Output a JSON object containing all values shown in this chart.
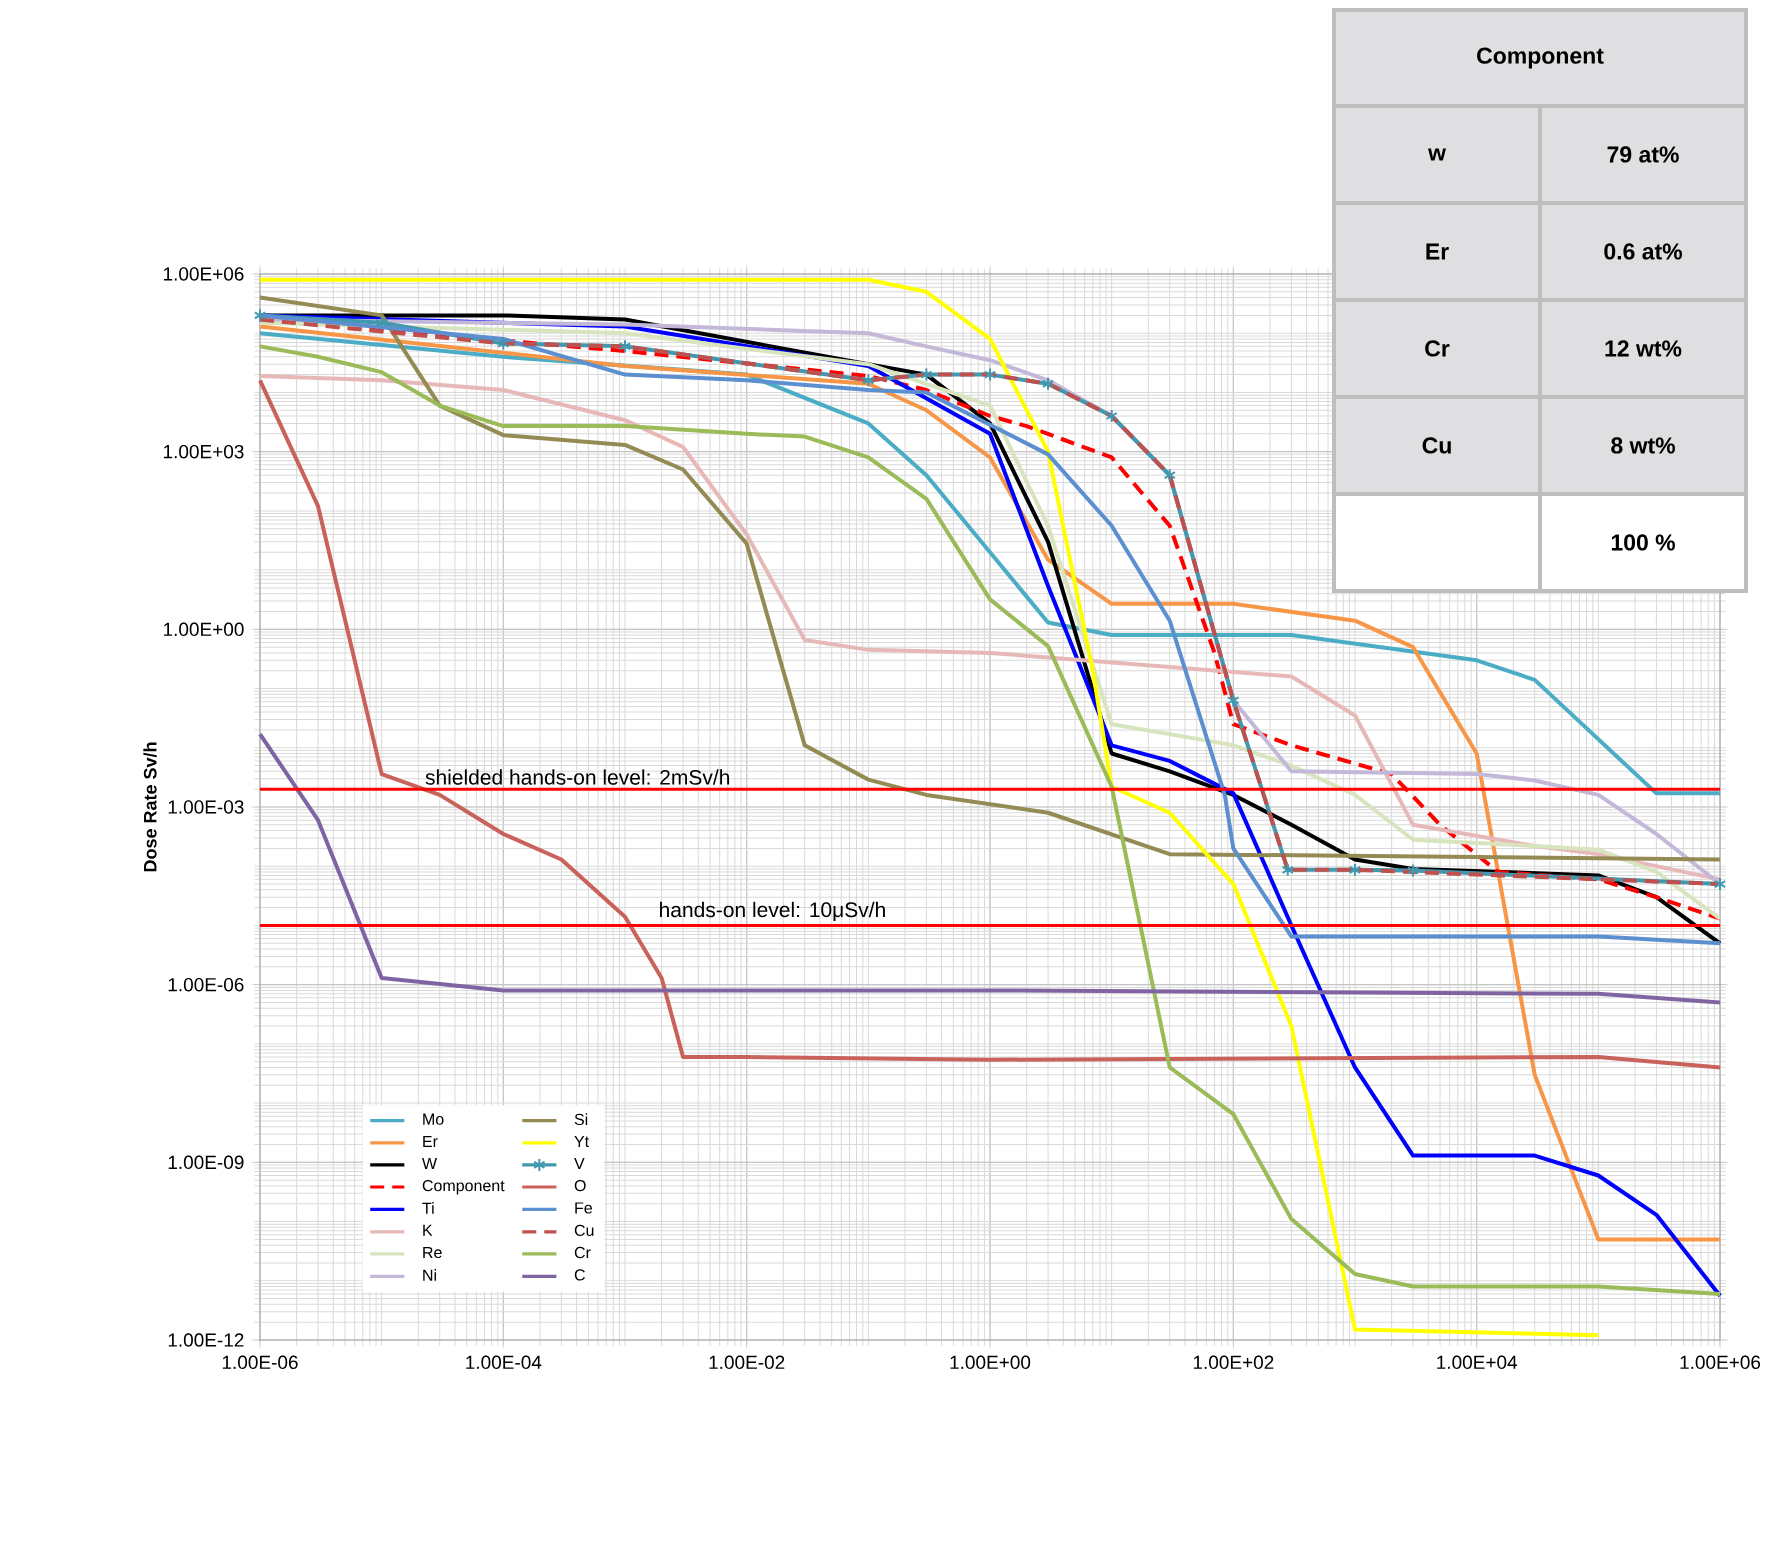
{
  "chart_data": {
    "type": "line",
    "ylabel": "Dose Rate  Sv/h",
    "log": "xy",
    "grid": true,
    "legend": "bottom left",
    "xlim": [
      1e-06,
      1000000.0
    ],
    "ylim": [
      1e-12,
      1000000.0
    ],
    "xticks": [
      {
        "value": 1e-06,
        "label": "1.00E-06"
      },
      {
        "value": 0.0001,
        "label": "1.00E-04"
      },
      {
        "value": 0.01,
        "label": "1.00E-02"
      },
      {
        "value": 1,
        "label": "1.00E+00"
      },
      {
        "value": 100,
        "label": "1.00E+02"
      },
      {
        "value": 10000.0,
        "label": "1.00E+04"
      },
      {
        "value": 1000000.0,
        "label": "1.00E+06"
      }
    ],
    "yticks": [
      {
        "value": 1e-12,
        "label": "1.00E-12"
      },
      {
        "value": 1e-09,
        "label": "1.00E-09"
      },
      {
        "value": 1e-06,
        "label": "1.00E-06"
      },
      {
        "value": 0.001,
        "label": "1.00E-03"
      },
      {
        "value": 1,
        "label": "1.00E+00"
      },
      {
        "value": 1000.0,
        "label": "1.00E+03"
      },
      {
        "value": 1000000.0,
        "label": "1.00E+06"
      }
    ],
    "ref_lines": [
      {
        "axis": "y",
        "value": 0.002,
        "label": "shielded hands-on level: 2mSv/h",
        "color": "#ff0000"
      },
      {
        "axis": "y",
        "value": 1e-05,
        "label": "hands-on level: 10μSv/h",
        "color": "#ff0000"
      }
    ],
    "annotations": [
      "Component",
      "w",
      "79 at%",
      "Er",
      "0.6 at%",
      "Cr",
      "12 wt%",
      "Cu",
      "8 wt%",
      "100 %"
    ],
    "series": [
      {
        "name": "Mo",
        "color": "#4bacc6",
        "x": [
          1e-06,
          0.0001,
          0.01,
          0.1,
          0.3,
          1,
          3,
          10,
          300,
          10000.0,
          30000.0,
          300000.0,
          1000000.0
        ],
        "values": [
          100000.0,
          40000.0,
          20000.0,
          3000.0,
          400,
          20,
          1.3,
          0.8,
          0.8,
          0.3,
          0.14,
          0.0017,
          0.0017
        ]
      },
      {
        "name": "Er",
        "color": "#f79646",
        "x": [
          1e-06,
          0.001,
          0.1,
          0.3,
          1,
          3,
          10,
          100,
          1000,
          3000,
          10000.0,
          30000.0,
          100000.0,
          1000000.0
        ],
        "values": [
          130000.0,
          28000.0,
          14000.0,
          5000.0,
          800,
          15,
          2.7,
          2.7,
          1.4,
          0.5,
          0.008,
          3e-08,
          5e-11,
          5e-11
        ]
      },
      {
        "name": "W",
        "color": "#000000",
        "x": [
          1e-06,
          0.0001,
          0.001,
          0.1,
          0.3,
          1,
          3,
          10,
          30,
          100,
          300,
          1000,
          3000,
          100000.0,
          300000.0,
          1000000.0
        ],
        "values": [
          200000.0,
          200000.0,
          170000.0,
          30000.0,
          20000.0,
          3000.0,
          30,
          0.008,
          0.004,
          0.0016,
          0.0005,
          0.00013,
          9e-05,
          7e-05,
          3e-05,
          5e-06
        ]
      },
      {
        "name": "Component",
        "color": "#ff0000",
        "line_style": "dashed",
        "x": [
          1e-06,
          0.001,
          0.1,
          0.3,
          1,
          2,
          10,
          30,
          70,
          100,
          300,
          2000,
          5000,
          15000.0,
          100000.0,
          300000.0,
          1000000.0
        ],
        "values": [
          170000.0,
          50000.0,
          19000.0,
          11000.0,
          4000.0,
          2700.0,
          800,
          56,
          0.4,
          0.025,
          0.011,
          0.0036,
          0.0005,
          8e-05,
          6e-05,
          3e-05,
          1.3e-05
        ]
      },
      {
        "name": "Ti",
        "color": "#0000ff",
        "x": [
          1e-06,
          0.001,
          0.1,
          1,
          3,
          10,
          30,
          100,
          300,
          1000,
          3000,
          30000.0,
          100000.0,
          300000.0,
          1000000.0
        ],
        "values": [
          200000.0,
          130000.0,
          28000.0,
          2000.0,
          5.4,
          0.011,
          0.006,
          0.0017,
          1e-05,
          4e-08,
          1.3e-09,
          1.3e-09,
          6e-10,
          1.3e-10,
          5.6e-12
        ]
      },
      {
        "name": "K",
        "color": "#e6b9b8",
        "x": [
          1e-06,
          1e-05,
          0.0001,
          0.001,
          0.003,
          0.01,
          0.03,
          0.1,
          1,
          300,
          1000,
          3000,
          30000.0,
          100000.0,
          1000000.0
        ],
        "values": [
          19000.0,
          16000.0,
          11000.0,
          3400.0,
          1200.0,
          40,
          0.66,
          0.45,
          0.4,
          0.16,
          0.035,
          0.0005,
          0.00022,
          0.00016,
          6e-05
        ]
      },
      {
        "name": "Re",
        "color": "#d7e4bd",
        "x": [
          1e-06,
          0.001,
          0.1,
          1,
          3,
          10,
          30,
          100,
          300,
          1000,
          3000,
          30000.0,
          100000.0,
          300000.0,
          1000000.0
        ],
        "values": [
          150000.0,
          100000.0,
          30000.0,
          6000.0,
          56,
          0.025,
          0.017,
          0.011,
          0.005,
          0.0016,
          0.00028,
          0.00022,
          0.00019,
          8e-05,
          1.3e-05
        ]
      },
      {
        "name": "Ni",
        "color": "#c3b8d8",
        "x": [
          1e-06,
          0.001,
          0.1,
          0.3,
          1,
          3,
          10,
          30,
          100,
          300,
          10000.0,
          30000.0,
          100000.0,
          300000.0,
          1000000.0
        ],
        "values": [
          170000.0,
          140000.0,
          100000.0,
          60000.0,
          35000.0,
          16000.0,
          4000.0,
          400,
          0.063,
          0.004,
          0.0036,
          0.0028,
          0.0016,
          0.00035,
          5e-05
        ]
      },
      {
        "name": "Si",
        "color": "#948a54",
        "x": [
          1e-06,
          1e-05,
          3e-05,
          0.0001,
          0.001,
          0.003,
          0.01,
          0.03,
          0.1,
          0.3,
          3,
          30,
          1000000.0
        ],
        "values": [
          400000.0,
          200000.0,
          6000.0,
          1900.0,
          1300.0,
          500,
          28,
          0.011,
          0.0029,
          0.0016,
          0.0008,
          0.00016,
          0.00013
        ]
      },
      {
        "name": "Yt",
        "color": "#ffff00",
        "x": [
          1e-06,
          0.1,
          0.3,
          1,
          3,
          7,
          10,
          30,
          100,
          300,
          1000,
          100000.0
        ],
        "values": [
          800000.0,
          800000.0,
          500000.0,
          80000.0,
          1000.0,
          0.2,
          0.0022,
          0.0008,
          5e-05,
          2e-07,
          1.5e-12,
          1.2e-12
        ]
      },
      {
        "name": "V",
        "color": "#4198af",
        "marker": "cross",
        "x": [
          1e-06,
          1e-05,
          0.0001,
          0.001,
          0.1,
          0.3,
          1,
          3,
          10,
          30,
          100,
          280,
          1000,
          3000,
          1000000.0
        ],
        "values": [
          200000.0,
          150000.0,
          67000.0,
          60000.0,
          16000.0,
          20000.0,
          20000.0,
          14000.0,
          4000.0,
          400,
          0.063,
          8.7e-05,
          8.7e-05,
          8.5e-05,
          5e-05
        ]
      },
      {
        "name": "O",
        "color": "#c9625a",
        "x": [
          1e-06,
          3e-06,
          1e-05,
          3e-05,
          0.0001,
          0.0003,
          0.001,
          0.002,
          0.003,
          0.01,
          1,
          100000.0,
          1000000.0
        ],
        "values": [
          16000.0,
          120,
          0.0036,
          0.0016,
          0.00035,
          0.00013,
          1.4e-05,
          1.3e-06,
          6e-08,
          6e-08,
          5.4e-08,
          6e-08,
          4e-08
        ]
      },
      {
        "name": "Fe",
        "color": "#5b8fd0",
        "x": [
          1e-06,
          0.0001,
          0.001,
          0.01,
          0.1,
          0.3,
          3,
          10,
          30,
          85,
          100,
          300,
          100000.0,
          1000000.0
        ],
        "values": [
          200000.0,
          80000.0,
          20000.0,
          16000.0,
          11000.0,
          10000.0,
          900,
          56,
          1.4,
          0.0016,
          0.0002,
          6.5e-06,
          6.5e-06,
          5e-06
        ]
      },
      {
        "name": "Cu",
        "color": "#c0504d",
        "line_style": "dashed",
        "x": [
          1e-06,
          0.0001,
          0.001,
          0.1,
          0.3,
          1,
          3,
          10,
          30,
          100,
          280,
          1000,
          1000000.0
        ],
        "values": [
          170000.0,
          67000.0,
          60000.0,
          16000.0,
          20000.0,
          20000.0,
          14000.0,
          4000.0,
          400,
          0.063,
          8.7e-05,
          8.7e-05,
          5e-05
        ]
      },
      {
        "name": "Cr",
        "color": "#9bbb59",
        "x": [
          1e-06,
          3e-06,
          1e-05,
          3e-05,
          0.0001,
          0.001,
          0.01,
          0.03,
          0.1,
          0.3,
          1,
          3,
          10,
          30,
          100,
          300,
          1000,
          3000,
          100000.0,
          1000000.0
        ],
        "values": [
          60000.0,
          40000.0,
          22000.0,
          6000.0,
          2700.0,
          2700.0,
          2000.0,
          1800.0,
          800,
          160,
          3.2,
          0.52,
          0.0022,
          4e-08,
          6.5e-09,
          1.1e-10,
          1.3e-11,
          8e-12,
          8e-12,
          6e-12
        ]
      },
      {
        "name": "C",
        "color": "#8064a2",
        "x": [
          1e-06,
          3e-06,
          1e-05,
          0.0001,
          1,
          100000.0,
          1000000.0
        ],
        "values": [
          0.017,
          0.0006,
          1.3e-06,
          8e-07,
          8e-07,
          7e-07,
          5e-07
        ]
      }
    ]
  }
}
